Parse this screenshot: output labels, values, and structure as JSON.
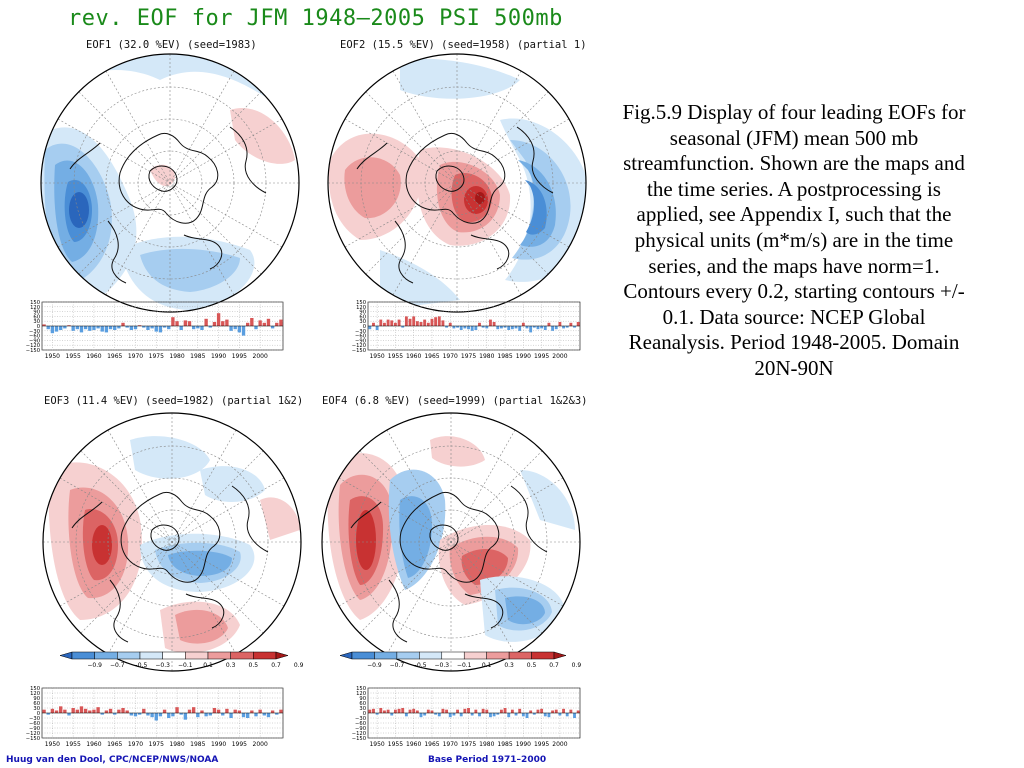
{
  "figure": {
    "title": "rev. EOF for JFM 1948–2005 PSI 500mb",
    "footer_left": "Huug van den Dool, CPC/NCEP/NWS/NOAA",
    "footer_right": "Base Period 1971–2000",
    "caption": "Fig.5.9 Display of  four leading EOFs for seasonal (JFM) mean 500 mb streamfunction. Shown are the maps and the time series. A postprocessing is applied, see Appendix I, such that the physical units (m*m/s) are in the time series, and the maps have norm=1. Contours every 0.2, starting contours +/- 0.1. Data source: NCEP Global Reanalysis. Period 1948-2005. Domain 20N-90N"
  },
  "panels": [
    {
      "label": "EOF1 (32.0 %EV)    (seed=1983)"
    },
    {
      "label": "EOF2 (15.5 %EV)   (seed=1958) (partial 1)"
    },
    {
      "label": "EOF3 (11.4 %EV)    (seed=1982) (partial 1&2)"
    },
    {
      "label": "EOF4 (6.8 %EV)     (seed=1999) (partial 1&2&3)"
    }
  ],
  "colors": {
    "positive": [
      "#f6d0d0",
      "#ec9c9c",
      "#dc6464",
      "#c83232",
      "#a41818"
    ],
    "negative": [
      "#d4e8f8",
      "#a6cdf0",
      "#74aee4",
      "#4a8ed6",
      "#2a66bc"
    ],
    "title_green": "#1a8a1a",
    "footer_blue": "#1414b4"
  },
  "colorbar": {
    "labels": [
      "−0.9",
      "−0.7",
      "−0.5",
      "−0.3",
      "−0.1",
      "0.1",
      "0.3",
      "0.5",
      "0.7",
      "0.9"
    ]
  },
  "chart_data": [
    {
      "type": "bar",
      "x_tick_labels": [
        "1950",
        "1955",
        "1960",
        "1965",
        "1970",
        "1975",
        "1980",
        "1985",
        "1990",
        "1995",
        "2000"
      ],
      "y_tick_labels": [
        "150",
        "120",
        "90",
        "60",
        "30",
        "0",
        "−30",
        "−60",
        "−90",
        "−120",
        "−150"
      ],
      "ylim": [
        -150,
        150
      ],
      "x": [
        1948,
        1949,
        1950,
        1951,
        1952,
        1953,
        1954,
        1955,
        1956,
        1957,
        1958,
        1959,
        1960,
        1961,
        1962,
        1963,
        1964,
        1965,
        1966,
        1967,
        1968,
        1969,
        1970,
        1971,
        1972,
        1973,
        1974,
        1975,
        1976,
        1977,
        1978,
        1979,
        1980,
        1981,
        1982,
        1983,
        1984,
        1985,
        1986,
        1987,
        1988,
        1989,
        1990,
        1991,
        1992,
        1993,
        1994,
        1995,
        1996,
        1997,
        1998,
        1999,
        2000,
        2001,
        2002,
        2003,
        2004,
        2005
      ],
      "values": [
        10,
        -20,
        -45,
        -35,
        -25,
        -15,
        5,
        -30,
        -20,
        -40,
        -20,
        -30,
        -25,
        -15,
        -35,
        -40,
        -20,
        -25,
        -15,
        20,
        -10,
        -25,
        -20,
        5,
        -10,
        -25,
        -15,
        -35,
        -40,
        -10,
        -20,
        55,
        30,
        -25,
        35,
        30,
        -20,
        -15,
        -25,
        45,
        -10,
        25,
        80,
        30,
        40,
        -30,
        -20,
        -40,
        -60,
        20,
        50,
        -20,
        35,
        20,
        45,
        -15,
        20,
        40
      ]
    },
    {
      "type": "bar",
      "x_tick_labels": [
        "1950",
        "1955",
        "1960",
        "1965",
        "1970",
        "1975",
        "1980",
        "1985",
        "1990",
        "1995",
        "2000"
      ],
      "y_tick_labels": [
        "150",
        "120",
        "90",
        "60",
        "30",
        "0",
        "−30",
        "−60",
        "−90",
        "−120",
        "−150"
      ],
      "ylim": [
        -150,
        150
      ],
      "x": [
        1948,
        1949,
        1950,
        1951,
        1952,
        1953,
        1954,
        1955,
        1956,
        1957,
        1958,
        1959,
        1960,
        1961,
        1962,
        1963,
        1964,
        1965,
        1966,
        1967,
        1968,
        1969,
        1970,
        1971,
        1972,
        1973,
        1974,
        1975,
        1976,
        1977,
        1978,
        1979,
        1980,
        1981,
        1982,
        1983,
        1984,
        1985,
        1986,
        1987,
        1988,
        1989,
        1990,
        1991,
        1992,
        1993,
        1994,
        1995,
        1996,
        1997,
        1998,
        1999,
        2000,
        2001,
        2002,
        2003,
        2004,
        2005
      ],
      "values": [
        -20,
        20,
        -25,
        40,
        20,
        40,
        35,
        20,
        40,
        -10,
        60,
        45,
        60,
        30,
        25,
        40,
        20,
        45,
        55,
        60,
        35,
        -10,
        20,
        -15,
        -10,
        -25,
        -15,
        -20,
        -30,
        -25,
        20,
        -10,
        -15,
        40,
        25,
        -20,
        -15,
        -10,
        -25,
        -20,
        -15,
        -30,
        20,
        -15,
        -40,
        -10,
        -20,
        -15,
        -25,
        20,
        -30,
        -20,
        25,
        -15,
        -10,
        20,
        -10,
        25
      ]
    },
    {
      "type": "bar",
      "x_tick_labels": [
        "1950",
        "1955",
        "1960",
        "1965",
        "1970",
        "1975",
        "1980",
        "1985",
        "1990",
        "1995",
        "2000"
      ],
      "y_tick_labels": [
        "150",
        "120",
        "90",
        "60",
        "30",
        "0",
        "−30",
        "−60",
        "−90",
        "−120",
        "−150"
      ],
      "ylim": [
        -150,
        150
      ],
      "x": [
        1948,
        1949,
        1950,
        1951,
        1952,
        1953,
        1954,
        1955,
        1956,
        1957,
        1958,
        1959,
        1960,
        1961,
        1962,
        1963,
        1964,
        1965,
        1966,
        1967,
        1968,
        1969,
        1970,
        1971,
        1972,
        1973,
        1974,
        1975,
        1976,
        1977,
        1978,
        1979,
        1980,
        1981,
        1982,
        1983,
        1984,
        1985,
        1986,
        1987,
        1988,
        1989,
        1990,
        1991,
        1992,
        1993,
        1994,
        1995,
        1996,
        1997,
        1998,
        1999,
        2000,
        2001,
        2002,
        2003,
        2004,
        2005
      ],
      "values": [
        20,
        -10,
        25,
        15,
        40,
        20,
        -15,
        30,
        20,
        40,
        25,
        15,
        20,
        35,
        -10,
        15,
        25,
        -10,
        20,
        30,
        15,
        -15,
        -20,
        -10,
        25,
        -15,
        -25,
        -45,
        -20,
        20,
        -30,
        -20,
        35,
        -10,
        -40,
        20,
        35,
        -25,
        15,
        -20,
        -15,
        30,
        20,
        -15,
        25,
        -30,
        20,
        15,
        -25,
        -30,
        15,
        -20,
        20,
        -15,
        -25,
        15,
        -10,
        20
      ]
    },
    {
      "type": "bar",
      "x_tick_labels": [
        "1950",
        "1955",
        "1960",
        "1965",
        "1970",
        "1975",
        "1980",
        "1985",
        "1990",
        "1995",
        "2000"
      ],
      "y_tick_labels": [
        "150",
        "120",
        "90",
        "60",
        "30",
        "0",
        "−30",
        "−60",
        "−90",
        "−120",
        "−150"
      ],
      "ylim": [
        -150,
        150
      ],
      "x": [
        1948,
        1949,
        1950,
        1951,
        1952,
        1953,
        1954,
        1955,
        1956,
        1957,
        1958,
        1959,
        1960,
        1961,
        1962,
        1963,
        1964,
        1965,
        1966,
        1967,
        1968,
        1969,
        1970,
        1971,
        1972,
        1973,
        1974,
        1975,
        1976,
        1977,
        1978,
        1979,
        1980,
        1981,
        1982,
        1983,
        1984,
        1985,
        1986,
        1987,
        1988,
        1989,
        1990,
        1991,
        1992,
        1993,
        1994,
        1995,
        1996,
        1997,
        1998,
        1999,
        2000,
        2001,
        2002,
        2003,
        2004,
        2005
      ],
      "values": [
        20,
        25,
        -10,
        30,
        15,
        20,
        -15,
        20,
        25,
        30,
        -20,
        20,
        25,
        15,
        -25,
        -15,
        20,
        15,
        -10,
        -20,
        25,
        20,
        -25,
        -15,
        20,
        -20,
        25,
        30,
        -15,
        20,
        -20,
        25,
        20,
        -25,
        -20,
        -10,
        20,
        30,
        -25,
        20,
        -15,
        25,
        -20,
        -30,
        15,
        -10,
        20,
        25,
        -20,
        -25,
        15,
        20,
        -15,
        25,
        -20,
        20,
        -30,
        15
      ]
    }
  ]
}
